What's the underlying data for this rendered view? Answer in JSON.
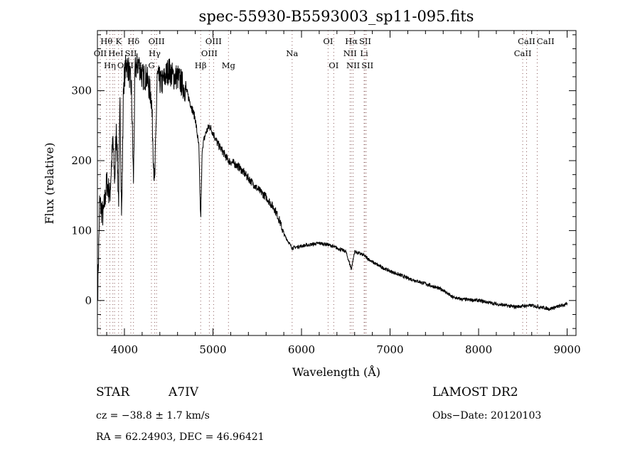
{
  "chart_data": {
    "type": "line",
    "title": "spec-55930-B5593003_sp11-095.fits",
    "xlabel": "Wavelength (Å)",
    "ylabel": "Flux (relative)",
    "xlim": [
      3695,
      9100
    ],
    "ylim": [
      -50,
      386
    ],
    "xticks": [
      4000,
      5000,
      6000,
      7000,
      8000,
      9000
    ],
    "yticks": [
      0,
      100,
      200,
      300
    ],
    "grid": false,
    "series": [
      {
        "name": "spectrum",
        "color": "#000000",
        "points": [
          [
            3700,
            20
          ],
          [
            3720,
            140
          ],
          [
            3760,
            120
          ],
          [
            3800,
            170
          ],
          [
            3835,
            150
          ],
          [
            3870,
            230
          ],
          [
            3890,
            170
          ],
          [
            3910,
            250
          ],
          [
            3934,
            140
          ],
          [
            3950,
            280
          ],
          [
            3969,
            120
          ],
          [
            3990,
            310
          ],
          [
            4020,
            340
          ],
          [
            4050,
            330
          ],
          [
            4080,
            300
          ],
          [
            4102,
            170
          ],
          [
            4120,
            330
          ],
          [
            4160,
            340
          ],
          [
            4200,
            320
          ],
          [
            4250,
            320
          ],
          [
            4305,
            290
          ],
          [
            4341,
            160
          ],
          [
            4370,
            320
          ],
          [
            4420,
            310
          ],
          [
            4500,
            330
          ],
          [
            4550,
            320
          ],
          [
            4600,
            320
          ],
          [
            4650,
            310
          ],
          [
            4700,
            300
          ],
          [
            4750,
            280
          ],
          [
            4800,
            260
          ],
          [
            4840,
            220
          ],
          [
            4861,
            115
          ],
          [
            4880,
            220
          ],
          [
            4920,
            240
          ],
          [
            4960,
            250
          ],
          [
            5000,
            240
          ],
          [
            5050,
            225
          ],
          [
            5100,
            215
          ],
          [
            5175,
            200
          ],
          [
            5250,
            195
          ],
          [
            5300,
            190
          ],
          [
            5400,
            175
          ],
          [
            5500,
            160
          ],
          [
            5600,
            148
          ],
          [
            5700,
            130
          ],
          [
            5750,
            115
          ],
          [
            5800,
            95
          ],
          [
            5894,
            75
          ],
          [
            6000,
            78
          ],
          [
            6100,
            80
          ],
          [
            6200,
            82
          ],
          [
            6300,
            80
          ],
          [
            6400,
            75
          ],
          [
            6500,
            70
          ],
          [
            6563,
            45
          ],
          [
            6600,
            70
          ],
          [
            6700,
            65
          ],
          [
            6800,
            55
          ],
          [
            6900,
            48
          ],
          [
            7000,
            42
          ],
          [
            7200,
            32
          ],
          [
            7400,
            24
          ],
          [
            7600,
            15
          ],
          [
            7700,
            5
          ],
          [
            7800,
            2
          ],
          [
            8000,
            0
          ],
          [
            8200,
            -5
          ],
          [
            8400,
            -9
          ],
          [
            8600,
            -7
          ],
          [
            8800,
            -12
          ],
          [
            9000,
            -5
          ]
        ]
      }
    ],
    "line_ids": [
      {
        "label": "OII",
        "wave": 3727,
        "tier": 1
      },
      {
        "label": "Hθ",
        "wave": 3798,
        "tier": 0
      },
      {
        "label": "Hη",
        "wave": 3835,
        "tier": 2
      },
      {
        "label": "OIII",
        "wave": 3869,
        "tier": 2
      },
      {
        "label": "HeI",
        "wave": 3889,
        "tier": 1
      },
      {
        "label": "K",
        "wave": 3934,
        "tier": 0
      },
      {
        "label": "H",
        "wave": 3969,
        "tier": 2
      },
      {
        "label": "SII",
        "wave": 4072,
        "tier": 1
      },
      {
        "label": "Hδ",
        "wave": 4102,
        "tier": 0
      },
      {
        "label": "G",
        "wave": 4305,
        "tier": 2
      },
      {
        "label": "Hγ",
        "wave": 4341,
        "tier": 1
      },
      {
        "label": "OIII",
        "wave": 4363,
        "tier": 0
      },
      {
        "label": "Hβ",
        "wave": 4861,
        "tier": 2
      },
      {
        "label": "OIII",
        "wave": 4959,
        "tier": 1
      },
      {
        "label": "OIII",
        "wave": 5007,
        "tier": 0
      },
      {
        "label": "Mg",
        "wave": 5175,
        "tier": 2
      },
      {
        "label": "Na",
        "wave": 5894,
        "tier": 1
      },
      {
        "label": "OI",
        "wave": 6300,
        "tier": 0
      },
      {
        "label": "OI",
        "wave": 6364,
        "tier": 2
      },
      {
        "label": "NII",
        "wave": 6548,
        "tier": 1
      },
      {
        "label": "Hα",
        "wave": 6563,
        "tier": 0
      },
      {
        "label": "NII",
        "wave": 6583,
        "tier": 2
      },
      {
        "label": "Li",
        "wave": 6707,
        "tier": 1
      },
      {
        "label": "SII",
        "wave": 6716,
        "tier": 0
      },
      {
        "label": "SII",
        "wave": 6731,
        "tier": 2
      },
      {
        "label": "CaII",
        "wave": 8498,
        "tier": 1
      },
      {
        "label": "CaII",
        "wave": 8542,
        "tier": 0
      },
      {
        "label": "CaII",
        "wave": 8662,
        "tier": 0
      }
    ]
  },
  "info": {
    "object_type": "STAR",
    "subclass": "A7IV",
    "redshift": "cz = −38.8 ± 1.7 km/s",
    "coords": "RA =  62.24903, DEC =  46.96421",
    "survey": "LAMOST DR2",
    "obs_date": "Obs−Date: 20120103"
  }
}
